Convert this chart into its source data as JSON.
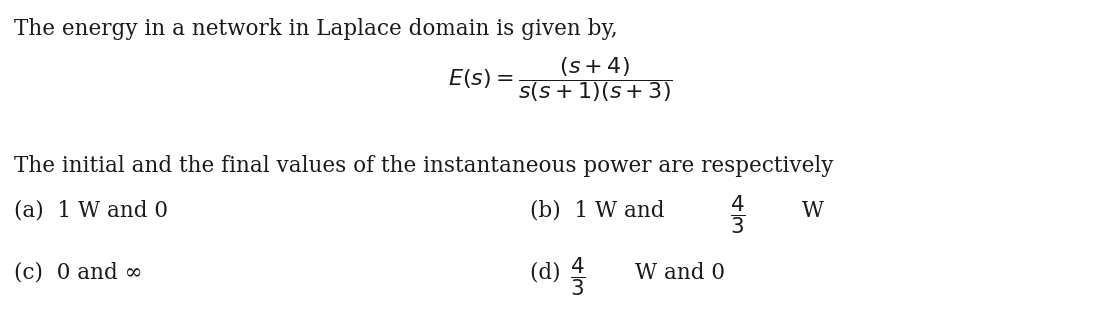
{
  "background_color": "#ffffff",
  "text_color": "#1a1a1a",
  "title_line": "The energy in a network in Laplace domain is given by,",
  "question_line": "The initial and the final values of the instantaneous power are respectively",
  "option_a": "(a)  1 W and 0",
  "option_b_text": "(b)  1 W and ",
  "option_b_frac": "$\\dfrac{4}{3}$",
  "option_b_suffix": " W",
  "option_c": "(c)  0 and ∞",
  "option_d_prefix": "(d)  ",
  "option_d_frac": "$\\dfrac{4}{3}$",
  "option_d_suffix": "W and 0",
  "formula": "$E(s) = \\dfrac{(s+4)}{s(s+1)(s+3)}$",
  "font_size_main": 15.5,
  "font_size_formula": 16,
  "fig_width": 11.19,
  "fig_height": 3.22,
  "dpi": 100
}
